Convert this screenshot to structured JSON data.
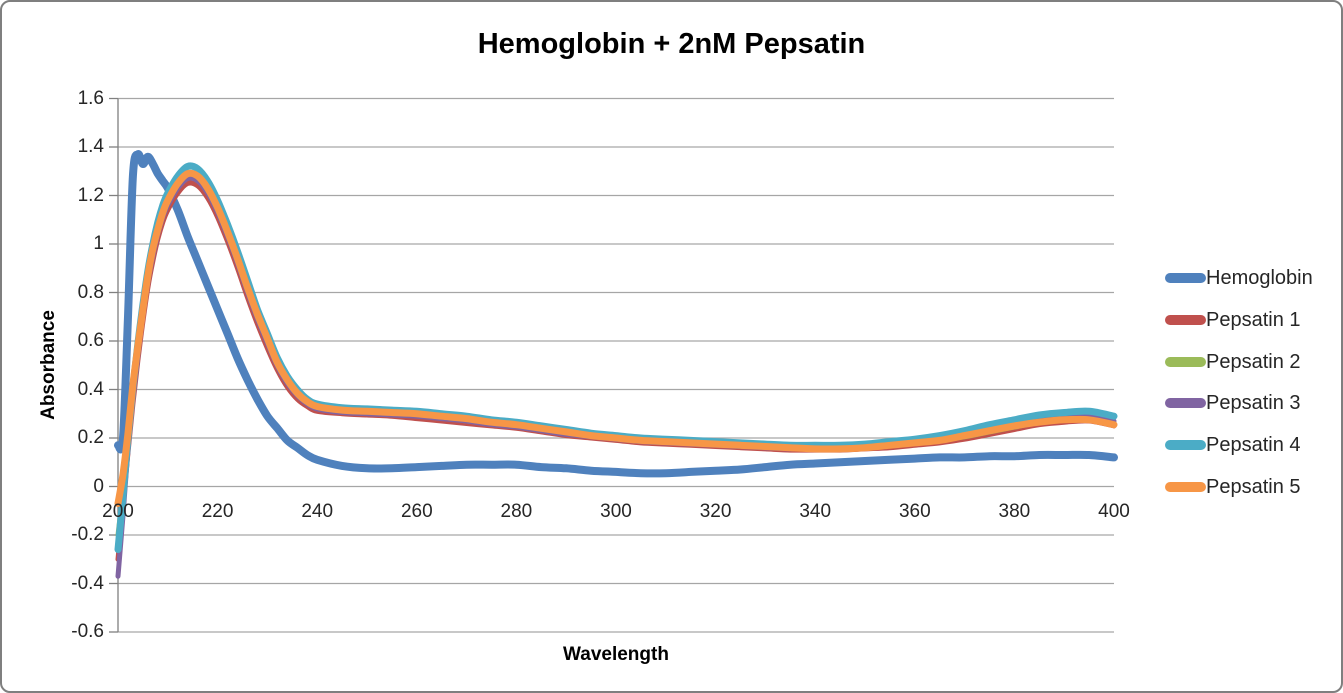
{
  "chart_data": {
    "type": "line",
    "title": "Hemoglobin + 2nM Pepsatin",
    "xlabel": "Wavelength",
    "ylabel": "Absorbance",
    "xlim": [
      200,
      400
    ],
    "ylim": [
      -0.6,
      1.6
    ],
    "x_ticks": [
      200,
      220,
      240,
      260,
      280,
      300,
      320,
      340,
      360,
      380,
      400
    ],
    "x_tick_labels": [
      "200",
      "220",
      "240",
      "260",
      "280",
      "300",
      "320",
      "340",
      "360",
      "380",
      "400"
    ],
    "y_ticks": [
      1.6,
      1.4,
      1.2,
      1.0,
      0.8,
      0.6,
      0.4,
      0.2,
      0.0,
      -0.2,
      -0.4,
      -0.6
    ],
    "y_tick_labels": [
      "1.6",
      "1.4",
      "1.2",
      "1",
      "0.8",
      "0.6",
      "0.4",
      "0.2",
      "0",
      "-0.2",
      "-0.4",
      "-0.6"
    ],
    "grid": "horizontal",
    "legend_position": "right",
    "gridline_color": "#A6A6A6",
    "axis_color": "#808080",
    "x": [
      200,
      201,
      202,
      203,
      204,
      205,
      206,
      207,
      208,
      209,
      210,
      212,
      214,
      216,
      218,
      220,
      222,
      224,
      226,
      228,
      230,
      232,
      234,
      236,
      238,
      240,
      245,
      250,
      255,
      260,
      265,
      270,
      275,
      280,
      285,
      290,
      295,
      300,
      305,
      310,
      315,
      320,
      325,
      330,
      335,
      340,
      345,
      350,
      355,
      360,
      365,
      370,
      375,
      380,
      385,
      390,
      395,
      400
    ],
    "series": [
      {
        "name": "Hemoglobin",
        "color": "#4F81BD",
        "values": [
          0.17,
          0.2,
          0.7,
          1.28,
          1.37,
          1.33,
          1.36,
          1.33,
          1.29,
          1.26,
          1.23,
          1.14,
          1.03,
          0.93,
          0.83,
          0.73,
          0.63,
          0.53,
          0.44,
          0.36,
          0.29,
          0.24,
          0.19,
          0.16,
          0.13,
          0.11,
          0.085,
          0.075,
          0.075,
          0.08,
          0.085,
          0.09,
          0.09,
          0.09,
          0.08,
          0.075,
          0.065,
          0.06,
          0.055,
          0.055,
          0.06,
          0.065,
          0.07,
          0.08,
          0.09,
          0.095,
          0.1,
          0.105,
          0.11,
          0.115,
          0.12,
          0.12,
          0.125,
          0.125,
          0.13,
          0.13,
          0.13,
          0.12
        ]
      },
      {
        "name": "Pepsatin 1",
        "color": "#C0504D",
        "values": [
          -0.3,
          -0.08,
          0.14,
          0.34,
          0.52,
          0.68,
          0.82,
          0.93,
          1.02,
          1.09,
          1.14,
          1.21,
          1.25,
          1.24,
          1.19,
          1.11,
          1.01,
          0.9,
          0.78,
          0.67,
          0.57,
          0.48,
          0.41,
          0.36,
          0.33,
          0.31,
          0.3,
          0.295,
          0.29,
          0.28,
          0.27,
          0.26,
          0.25,
          0.24,
          0.225,
          0.21,
          0.2,
          0.19,
          0.18,
          0.175,
          0.17,
          0.165,
          0.16,
          0.155,
          0.15,
          0.15,
          0.15,
          0.155,
          0.16,
          0.17,
          0.18,
          0.195,
          0.215,
          0.235,
          0.255,
          0.265,
          0.27,
          0.25
        ]
      },
      {
        "name": "Pepsatin 2",
        "color": "#9BBB59",
        "values": [
          -0.2,
          -0.02,
          0.17,
          0.37,
          0.55,
          0.71,
          0.85,
          0.96,
          1.05,
          1.12,
          1.17,
          1.24,
          1.28,
          1.27,
          1.22,
          1.14,
          1.04,
          0.93,
          0.81,
          0.7,
          0.6,
          0.5,
          0.43,
          0.38,
          0.345,
          0.325,
          0.31,
          0.305,
          0.3,
          0.295,
          0.285,
          0.27,
          0.26,
          0.25,
          0.235,
          0.22,
          0.21,
          0.2,
          0.19,
          0.185,
          0.18,
          0.175,
          0.17,
          0.165,
          0.16,
          0.16,
          0.16,
          0.165,
          0.17,
          0.18,
          0.19,
          0.205,
          0.225,
          0.245,
          0.265,
          0.275,
          0.28,
          0.26
        ]
      },
      {
        "name": "Pepsatin 3",
        "color": "#8064A2",
        "values": [
          -0.37,
          -0.12,
          0.15,
          0.36,
          0.54,
          0.7,
          0.84,
          0.95,
          1.04,
          1.11,
          1.16,
          1.23,
          1.27,
          1.26,
          1.21,
          1.13,
          1.03,
          0.92,
          0.8,
          0.69,
          0.59,
          0.495,
          0.425,
          0.375,
          0.34,
          0.32,
          0.305,
          0.3,
          0.295,
          0.29,
          0.28,
          0.27,
          0.255,
          0.245,
          0.23,
          0.215,
          0.205,
          0.195,
          0.185,
          0.18,
          0.175,
          0.17,
          0.165,
          0.16,
          0.155,
          0.155,
          0.155,
          0.16,
          0.17,
          0.18,
          0.195,
          0.215,
          0.24,
          0.26,
          0.28,
          0.29,
          0.295,
          0.27
        ]
      },
      {
        "name": "Pepsatin 4",
        "color": "#4BACC6",
        "values": [
          -0.26,
          -0.04,
          0.2,
          0.41,
          0.59,
          0.75,
          0.89,
          1.0,
          1.09,
          1.16,
          1.21,
          1.28,
          1.32,
          1.31,
          1.26,
          1.18,
          1.08,
          0.97,
          0.85,
          0.73,
          0.63,
          0.53,
          0.455,
          0.4,
          0.36,
          0.34,
          0.325,
          0.32,
          0.315,
          0.31,
          0.3,
          0.29,
          0.275,
          0.265,
          0.25,
          0.235,
          0.22,
          0.21,
          0.2,
          0.195,
          0.19,
          0.185,
          0.18,
          0.175,
          0.17,
          0.17,
          0.17,
          0.175,
          0.185,
          0.195,
          0.21,
          0.23,
          0.255,
          0.275,
          0.295,
          0.305,
          0.31,
          0.29
        ]
      },
      {
        "name": "Pepsatin 5",
        "color": "#F79646",
        "values": [
          -0.07,
          0.05,
          0.22,
          0.42,
          0.58,
          0.73,
          0.87,
          0.98,
          1.06,
          1.13,
          1.18,
          1.25,
          1.29,
          1.28,
          1.23,
          1.15,
          1.05,
          0.94,
          0.82,
          0.71,
          0.61,
          0.51,
          0.44,
          0.385,
          0.35,
          0.33,
          0.315,
          0.31,
          0.305,
          0.3,
          0.29,
          0.28,
          0.265,
          0.255,
          0.24,
          0.225,
          0.21,
          0.2,
          0.19,
          0.185,
          0.18,
          0.175,
          0.17,
          0.165,
          0.16,
          0.155,
          0.155,
          0.16,
          0.17,
          0.18,
          0.19,
          0.21,
          0.23,
          0.25,
          0.265,
          0.275,
          0.275,
          0.255
        ]
      }
    ]
  }
}
